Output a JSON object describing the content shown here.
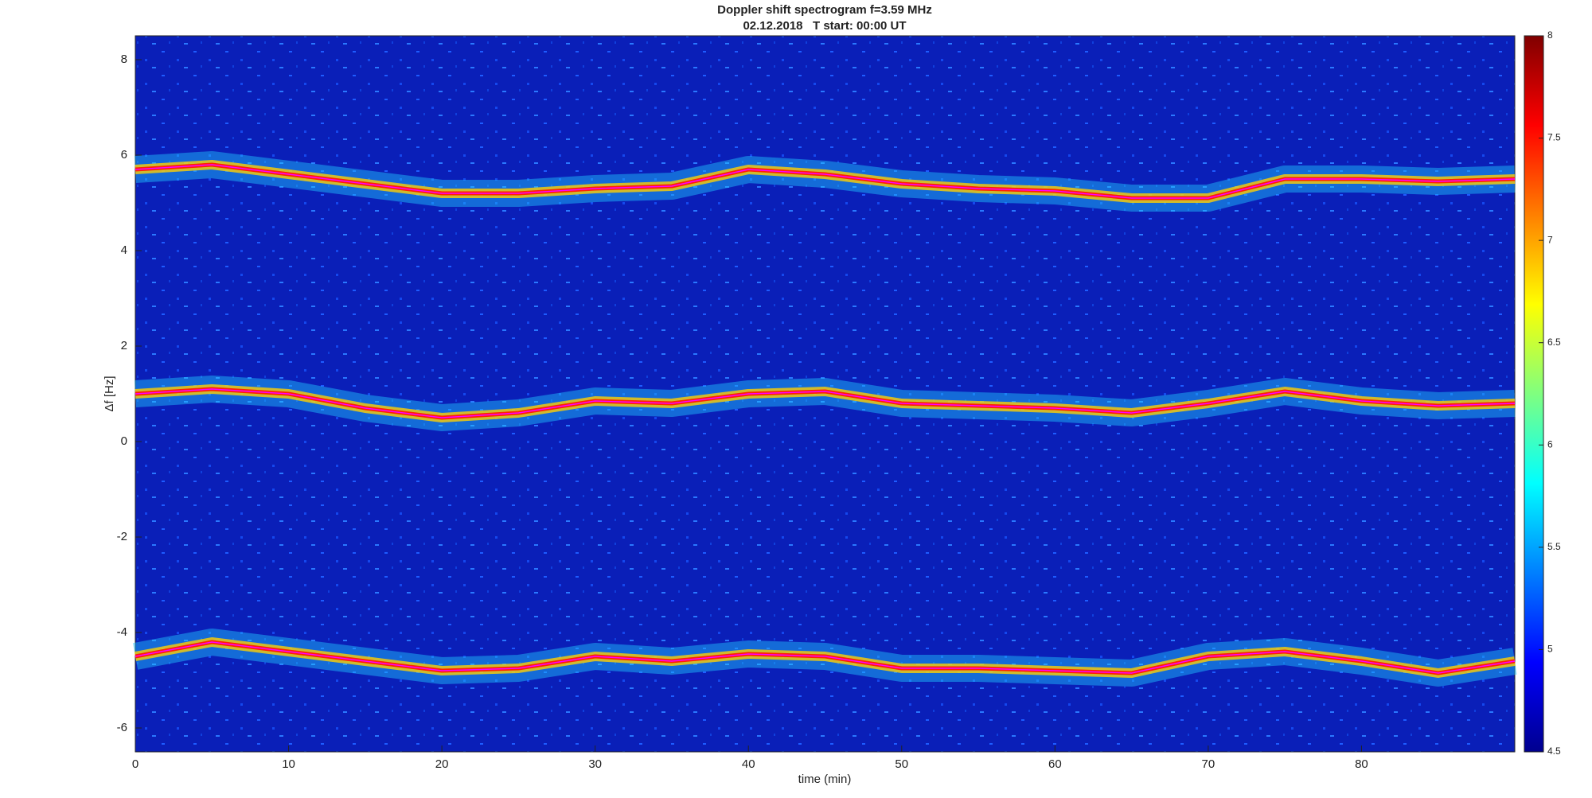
{
  "chart_data": {
    "type": "spectrogram",
    "title": "Doppler shift spectrogram f=3.59 MHz",
    "subtitle": "02.12.2018   T start: 00:00 UT",
    "xlabel": "time (min)",
    "ylabel": "Δf [Hz]",
    "xlim": [
      0,
      90
    ],
    "ylim": [
      -6.5,
      8.5
    ],
    "xticks": [
      0,
      10,
      20,
      30,
      40,
      50,
      60,
      70,
      80
    ],
    "yticks": [
      -6,
      -4,
      -2,
      0,
      2,
      4,
      6,
      8
    ],
    "clim": [
      4.5,
      8
    ],
    "cticks": [
      4.5,
      5,
      5.5,
      6,
      6.5,
      7,
      7.5,
      8
    ],
    "x": [
      0,
      5,
      10,
      15,
      20,
      25,
      30,
      35,
      40,
      45,
      50,
      55,
      60,
      65,
      70,
      75,
      80,
      85,
      90
    ],
    "series": [
      {
        "color": "#ff00ff",
        "values": [
          5.7,
          5.8,
          5.6,
          5.4,
          5.2,
          5.2,
          5.3,
          5.35,
          5.7,
          5.6,
          5.4,
          5.3,
          5.25,
          5.1,
          5.1,
          5.5,
          5.5,
          5.45,
          5.5
        ]
      },
      {
        "color": "#ff00ff",
        "values": [
          1.0,
          1.1,
          1.0,
          0.7,
          0.5,
          0.6,
          0.85,
          0.8,
          1.0,
          1.05,
          0.8,
          0.75,
          0.7,
          0.6,
          0.8,
          1.05,
          0.85,
          0.75,
          0.8
        ]
      },
      {
        "color": "#ff00ff",
        "values": [
          -4.5,
          -4.2,
          -4.4,
          -4.6,
          -4.8,
          -4.75,
          -4.5,
          -4.6,
          -4.45,
          -4.5,
          -4.75,
          -4.75,
          -4.8,
          -4.85,
          -4.5,
          -4.4,
          -4.6,
          -4.85,
          -4.6
        ]
      }
    ]
  }
}
